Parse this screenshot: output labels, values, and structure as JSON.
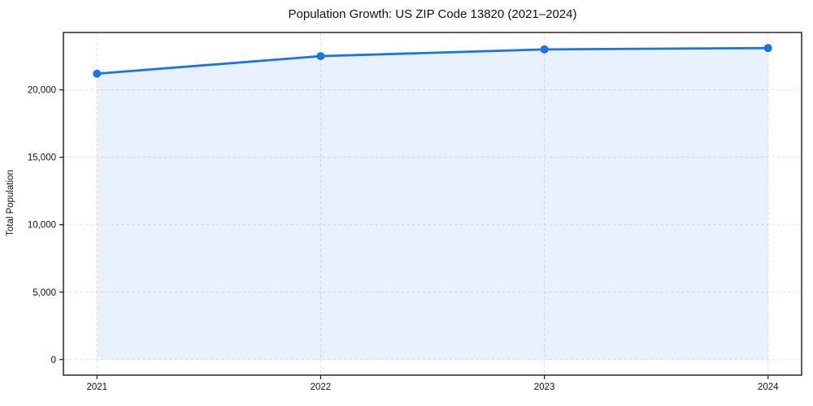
{
  "chart_data": {
    "type": "line",
    "title": "Population Growth: US ZIP Code 13820 (2021–2024)",
    "xlabel": "",
    "ylabel": "Total Population",
    "x": [
      2021,
      2022,
      2023,
      2024
    ],
    "series": [
      {
        "name": "Total Population",
        "values": [
          21200,
          22500,
          23000,
          23100
        ]
      }
    ],
    "area_fill": true,
    "marker": "circle",
    "grid": true,
    "grid_style": "dashed",
    "legend_position": "none",
    "xlim": [
      2020.85,
      2024.15
    ],
    "ylim": [
      -1155,
      24255
    ],
    "xticks": [
      2021,
      2022,
      2023,
      2024
    ],
    "xtick_labels": [
      "2021",
      "2022",
      "2023",
      "2024"
    ],
    "yticks": [
      0,
      5000,
      10000,
      15000,
      20000
    ],
    "ytick_labels": [
      "0",
      "5,000",
      "10,000",
      "15,000",
      "20,000"
    ],
    "colors": {
      "line": "#1a73e8",
      "marker": "#1a73e8",
      "area": "#1a73e8",
      "area_opacity": 0.1,
      "grid": "#c9c9c9",
      "spine": "#1a1a1a",
      "tick": "#1a1a1a",
      "text": "#111111"
    }
  }
}
